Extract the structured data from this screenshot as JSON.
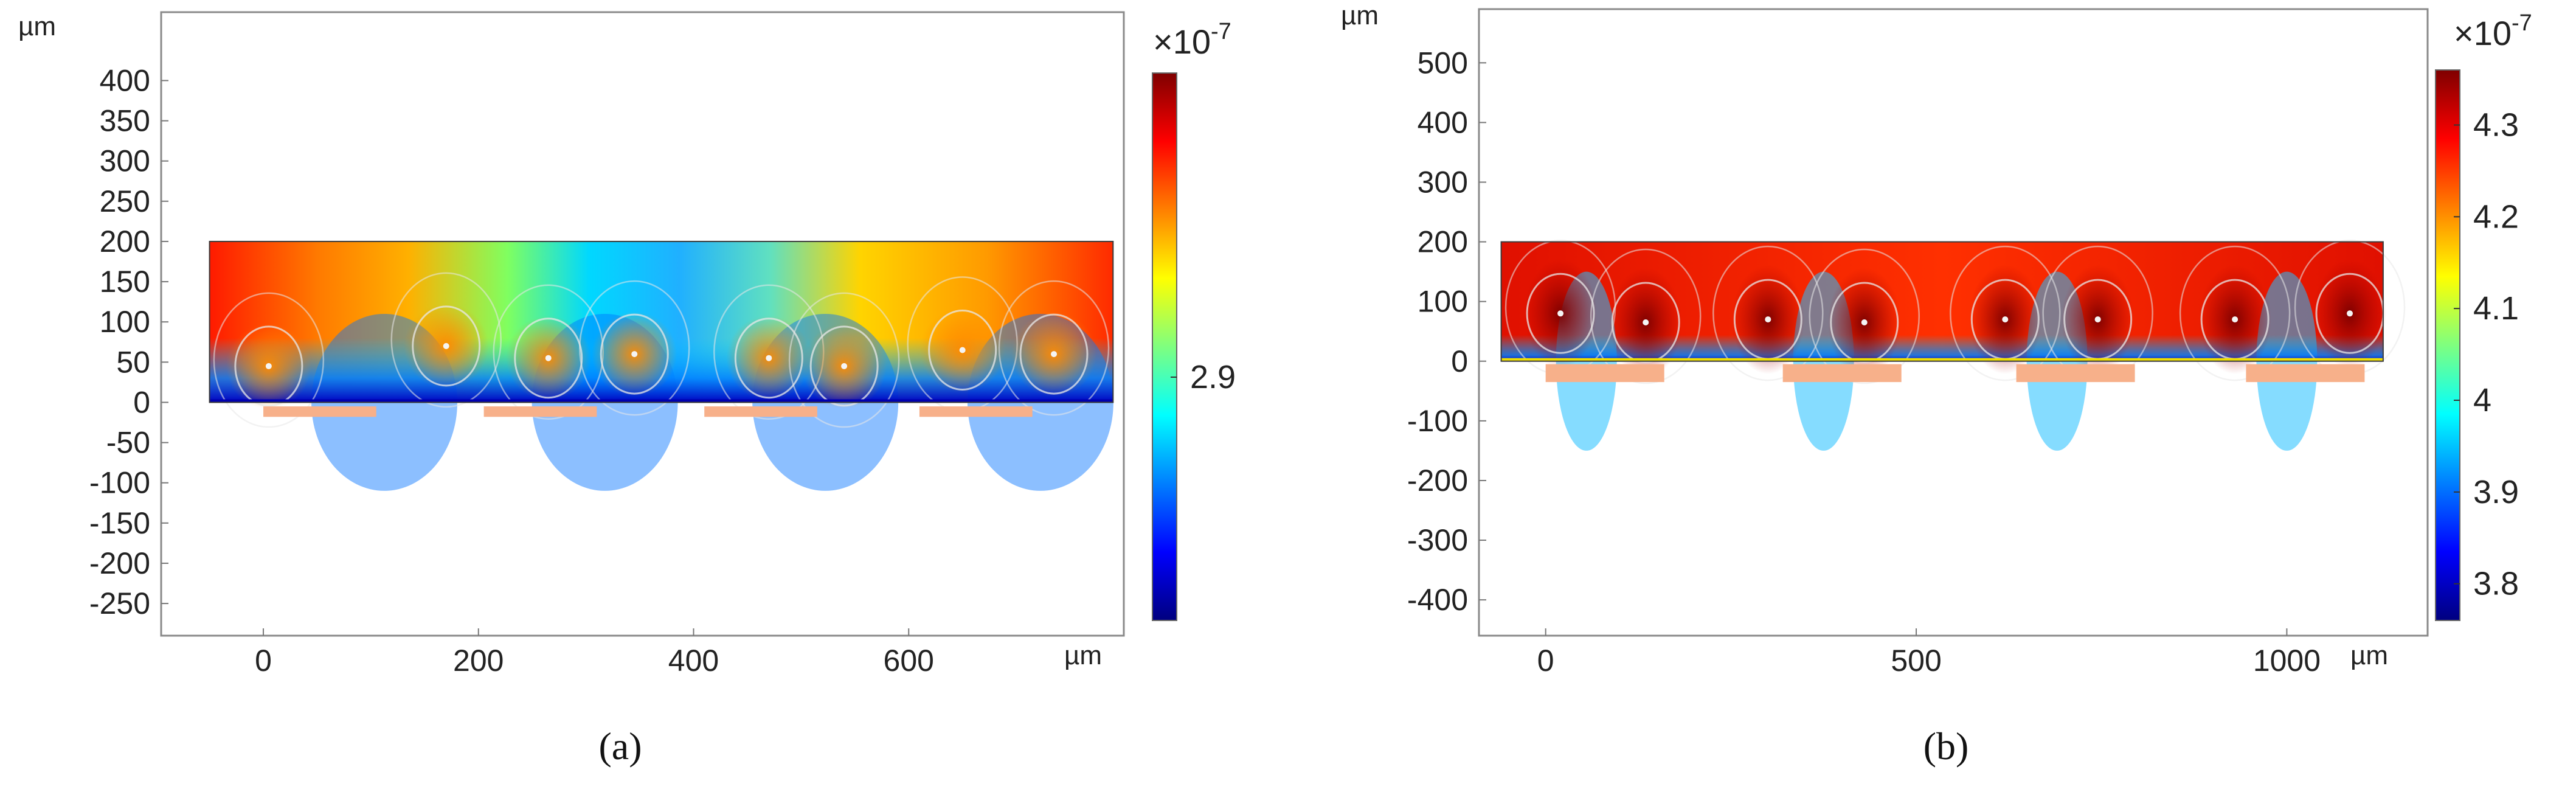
{
  "chart_data": [
    {
      "type": "heatmap",
      "panel_label": "(a)",
      "unit_y": "µm",
      "unit_x": "µm",
      "xlim": [
        -95,
        800
      ],
      "ylim": [
        -290,
        485
      ],
      "x_ticks": [
        0,
        200,
        400,
        600
      ],
      "y_ticks": [
        400,
        350,
        300,
        250,
        200,
        150,
        100,
        50,
        0,
        -50,
        -100,
        -150,
        -200,
        -250
      ],
      "domain": {
        "x": [
          -50,
          790
        ],
        "y": [
          0,
          200
        ]
      },
      "electrodes": [
        {
          "x0": 0,
          "x1": 105
        },
        {
          "x0": 205,
          "x1": 310
        },
        {
          "x0": 410,
          "x1": 515
        },
        {
          "x0": 610,
          "x1": 715
        }
      ],
      "electrode_y": [
        -18,
        -5
      ],
      "colorbar": {
        "multiplier": "×10",
        "exponent": "-7",
        "ticks": [
          {
            "value": 2.9,
            "label": "2.9"
          }
        ],
        "range": [
          2.5,
          3.4
        ]
      },
      "color_stops": [
        "#00007f",
        "#0000ff",
        "#007fff",
        "#00ffff",
        "#7fff7f",
        "#ffff00",
        "#ff7f00",
        "#ff0000",
        "#7f0000"
      ],
      "vortex_centers": [
        [
          5,
          45
        ],
        [
          170,
          70
        ],
        [
          265,
          55
        ],
        [
          345,
          60
        ],
        [
          470,
          55
        ],
        [
          540,
          45
        ],
        [
          650,
          65
        ],
        [
          735,
          60
        ]
      ]
    },
    {
      "type": "heatmap",
      "panel_label": "(b)",
      "unit_y": "µm",
      "unit_x": "µm",
      "xlim": [
        -90,
        1190
      ],
      "ylim": [
        -460,
        590
      ],
      "x_ticks": [
        0,
        500,
        1000
      ],
      "y_ticks": [
        500,
        400,
        300,
        200,
        100,
        0,
        -100,
        -200,
        -300,
        -400
      ],
      "domain": {
        "x": [
          -60,
          1130
        ],
        "y": [
          0,
          200
        ]
      },
      "electrodes": [
        {
          "x0": 0,
          "x1": 160
        },
        {
          "x0": 320,
          "x1": 480
        },
        {
          "x0": 635,
          "x1": 795
        },
        {
          "x0": 945,
          "x1": 1105
        }
      ],
      "electrode_y": [
        -35,
        -5
      ],
      "colorbar": {
        "multiplier": "×10",
        "exponent": "-7",
        "ticks": [
          {
            "value": 4.3,
            "label": "4.3"
          },
          {
            "value": 4.2,
            "label": "4.2"
          },
          {
            "value": 4.1,
            "label": "4.1"
          },
          {
            "value": 4.0,
            "label": "4"
          },
          {
            "value": 3.9,
            "label": "3.9"
          },
          {
            "value": 3.8,
            "label": "3.8"
          }
        ],
        "range": [
          3.76,
          4.36
        ]
      },
      "color_stops": [
        "#00007f",
        "#0000ff",
        "#007fff",
        "#00ffff",
        "#7fff7f",
        "#ffff00",
        "#ff7f00",
        "#ff0000",
        "#7f0000"
      ],
      "vortex_centers": [
        [
          20,
          80
        ],
        [
          135,
          65
        ],
        [
          300,
          70
        ],
        [
          430,
          65
        ],
        [
          620,
          70
        ],
        [
          745,
          70
        ],
        [
          930,
          70
        ],
        [
          1085,
          80
        ]
      ]
    }
  ]
}
